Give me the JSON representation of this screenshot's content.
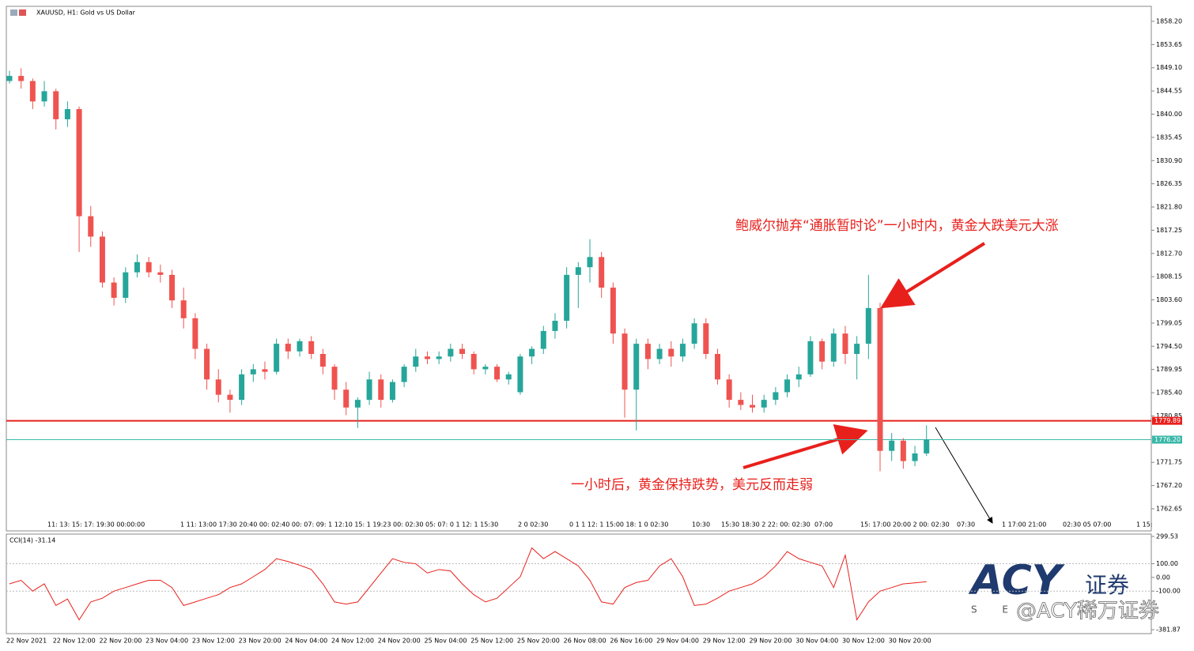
{
  "chart_data": [
    {
      "type": "candlestick",
      "title": "XAUUSD, H1:  Gold vs US Dollar",
      "up_color": "#26a69a",
      "down_color": "#ef5350",
      "categories": [
        "22 Nov 2021",
        null,
        null,
        null,
        "22 Nov 12:00",
        null,
        null,
        null,
        "22 Nov 20:00",
        null,
        null,
        null,
        "23 Nov 04:00",
        null,
        null,
        null,
        "23 Nov 12:00",
        null,
        null,
        null,
        "23 Nov 20:00",
        null,
        null,
        null,
        "24 Nov 04:00",
        null,
        null,
        null,
        "24 Nov 12:00",
        null,
        null,
        null,
        "24 Nov 20:00",
        null,
        null,
        null,
        "25 Nov 04:00",
        null,
        null,
        null,
        "25 Nov 12:00",
        null,
        null,
        null,
        "25 Nov 20:00",
        null,
        null,
        null,
        "26 Nov 08:00",
        null,
        null,
        null,
        "26 Nov 16:00",
        null,
        null,
        null,
        "29 Nov 04:00",
        null,
        null,
        null,
        "29 Nov 12:00",
        null,
        null,
        null,
        "29 Nov 20:00",
        null,
        null,
        null,
        "30 Nov 04:00",
        null,
        null,
        null,
        "30 Nov 12:00",
        null,
        null,
        null,
        "30 Nov 20:00",
        null,
        null,
        null
      ],
      "open": [
        1846.5,
        1847.5,
        1846.5,
        1842.5,
        1844.5,
        1839,
        1841,
        1820,
        1816,
        1807,
        1804,
        1809,
        1811,
        1809,
        1808.5,
        1803.5,
        1800,
        1794,
        1788,
        1785,
        1784,
        1789,
        1790,
        1789.5,
        1795,
        1793.5,
        1795.5,
        1793,
        1790.5,
        1786,
        1782.5,
        1784,
        1788,
        1784,
        1787.5,
        1790.5,
        1792.5,
        1792,
        1792.5,
        1794,
        1793,
        1790,
        1790.5,
        1788,
        1785.5,
        1792.5,
        1794,
        1797.5,
        1799.5,
        1808.5,
        1810,
        1812,
        1806,
        1797,
        1786,
        1795,
        1792,
        1794,
        1792.5,
        1795,
        1799,
        1793,
        1788,
        1784,
        1783,
        1782.5,
        1784,
        1785.5,
        1788,
        1789,
        1795.5,
        1791.5,
        1797,
        1793,
        1795,
        1802,
        1774,
        1776,
        1772,
        1773.5
      ],
      "high": [
        1848.5,
        1849,
        1847,
        1846.5,
        1845,
        1842.5,
        1841.5,
        1822,
        1817,
        1808,
        1810,
        1812.5,
        1812,
        1810.5,
        1809.5,
        1806,
        1801,
        1795,
        1790,
        1786,
        1790,
        1791,
        1791.5,
        1796,
        1796,
        1796,
        1796.5,
        1794,
        1791,
        1787.5,
        1784.5,
        1789.5,
        1789,
        1788,
        1791,
        1794,
        1793.5,
        1793.5,
        1795,
        1795,
        1793.5,
        1791,
        1791,
        1789.5,
        1793,
        1794.5,
        1798.5,
        1801,
        1810,
        1811,
        1815.5,
        1813,
        1807,
        1798,
        1796,
        1796,
        1795,
        1795.5,
        1796,
        1800,
        1800,
        1794,
        1789,
        1785.5,
        1785,
        1785,
        1786.5,
        1789,
        1790.5,
        1796.5,
        1796,
        1798,
        1798.5,
        1796.5,
        1808.5,
        1803,
        1777.5,
        1776.5,
        1775,
        1779
      ],
      "low": [
        1846,
        1845,
        1841,
        1841.5,
        1837,
        1837.5,
        1813,
        1814,
        1806,
        1802.5,
        1803,
        1808,
        1808,
        1807,
        1802,
        1798,
        1792,
        1786,
        1783.5,
        1781.5,
        1783,
        1787.5,
        1788,
        1789,
        1792,
        1792.5,
        1792,
        1789,
        1784,
        1781,
        1778.5,
        1783,
        1782.5,
        1783.5,
        1786.5,
        1789.5,
        1791,
        1791,
        1791.5,
        1792,
        1789,
        1789,
        1787.5,
        1787,
        1785,
        1791,
        1793,
        1796,
        1798,
        1802,
        1807,
        1804,
        1795,
        1780.5,
        1778,
        1790,
        1791,
        1790.5,
        1791.5,
        1794,
        1792,
        1787,
        1782.5,
        1782,
        1781.5,
        1781.5,
        1783,
        1784.5,
        1786.5,
        1788.5,
        1790,
        1790.5,
        1791,
        1788,
        1792,
        1770,
        1772,
        1770.5,
        1771,
        1773
      ],
      "close": [
        1847.5,
        1846.5,
        1842.5,
        1844.5,
        1839,
        1841,
        1820,
        1816,
        1807,
        1804,
        1809,
        1811,
        1809,
        1808.5,
        1803.5,
        1800,
        1794,
        1788,
        1785,
        1784,
        1789,
        1790,
        1789.5,
        1795,
        1793.5,
        1795.5,
        1793,
        1790.5,
        1786,
        1782.5,
        1784,
        1788,
        1784,
        1787.5,
        1790.5,
        1792.5,
        1792,
        1792.5,
        1794,
        1793,
        1790,
        1790.5,
        1788,
        1789,
        1792.5,
        1794,
        1797.5,
        1799.5,
        1808.5,
        1810,
        1812,
        1806,
        1797,
        1786,
        1795,
        1792,
        1794,
        1792.5,
        1795,
        1799,
        1793,
        1788,
        1784,
        1783,
        1782.5,
        1784,
        1785.5,
        1788,
        1789,
        1795.5,
        1791.5,
        1797,
        1793,
        1795,
        1802,
        1774,
        1776,
        1772,
        1773.5,
        1776.2
      ],
      "ylim": [
        1758.31,
        1861.14
      ],
      "yticks": [
        1762.65,
        {
          "value": 1767.2,
          "label": "1767.20"
        },
        1771.75,
        1780.85,
        {
          "value": 1785.4,
          "label": "1785.40"
        },
        1789.95,
        {
          "value": 1794.5,
          "label": "1794.50"
        },
        1799.05,
        {
          "value": 1803.6,
          "label": "1803.60"
        },
        1808.15,
        {
          "value": 1812.7,
          "label": "1812.70"
        },
        1817.25,
        {
          "value": 1821.8,
          "label": "1821.80"
        },
        1826.35,
        {
          "value": 1830.9,
          "label": "1830.90"
        },
        1835.45,
        {
          "value": 1840.0,
          "label": "1840.00"
        },
        1844.55,
        {
          "value": 1849.1,
          "label": "1849.10"
        },
        1853.65,
        {
          "value": 1858.2,
          "label": "1858.20"
        }
      ],
      "hlines": [
        {
          "value": 1779.89,
          "label": "1779.89",
          "color": "#e8201c"
        },
        {
          "value": 1776.2,
          "label": "1776.20",
          "color": "#3bb8a8"
        }
      ],
      "session_labels": [
        "11: 13: 15: 17: 19:30 00:00:00",
        "1 11: 13:00 17:30 20:40 00: 02:40 00: 07: 09: 1 12:10 15: 1 19:23 00: 02:30 05: 07: 0 1 12: 1 15:30",
        "2 0 02:30",
        "0 1 1 12: 1 15:00 18: 1 0 02:30",
        "10:30",
        "15:30 18:30 2 22: 00: 02:30",
        "07:00",
        "15: 17:00 20:00 2 00: 02:30",
        "07:30",
        "1 17:00 21:00",
        "02:30 05 07:00",
        "1 15:"
      ],
      "annotations": [
        "鲍威尔抛弃“通胀暂时论”一小时内，黄金大跌美元大涨",
        "一小时后，黄金保持跌势，美元反而走弱"
      ]
    },
    {
      "type": "line",
      "title": "CCI(14) -31.14",
      "color": "#e8201c",
      "values": [
        -47,
        -21,
        -100,
        -47,
        -205,
        -158,
        -310,
        -179,
        -152,
        -100,
        -74,
        -47,
        -21,
        -21,
        -74,
        -205,
        -179,
        -152,
        -126,
        -74,
        -47,
        5,
        58,
        137,
        116,
        89,
        58,
        -47,
        -179,
        -195,
        -179,
        -74,
        32,
        137,
        110,
        100,
        32,
        58,
        47,
        -47,
        -126,
        -179,
        -152,
        -74,
        5,
        216,
        137,
        189,
        137,
        84,
        -21,
        -179,
        -195,
        -74,
        -37,
        -21,
        84,
        137,
        5,
        -205,
        -195,
        -152,
        -100,
        -74,
        -47,
        5,
        84,
        189,
        137,
        110,
        84,
        -74,
        163,
        -310,
        -179,
        -100,
        -74,
        -47,
        -40,
        -31.14
      ],
      "ylim": [
        -381.87,
        299.53
      ],
      "yticks": [
        -381.87,
        {
          "value": -100,
          "label": "-100.00"
        },
        {
          "value": 0,
          "label": "0.00"
        },
        {
          "value": 100,
          "label": "100.00"
        },
        299.53
      ],
      "levels": [
        100,
        -100
      ]
    }
  ],
  "watermark": {
    "logo": "ACY",
    "brand": "证券",
    "letters": "S E",
    "handle": "@ACY稀万证券"
  }
}
